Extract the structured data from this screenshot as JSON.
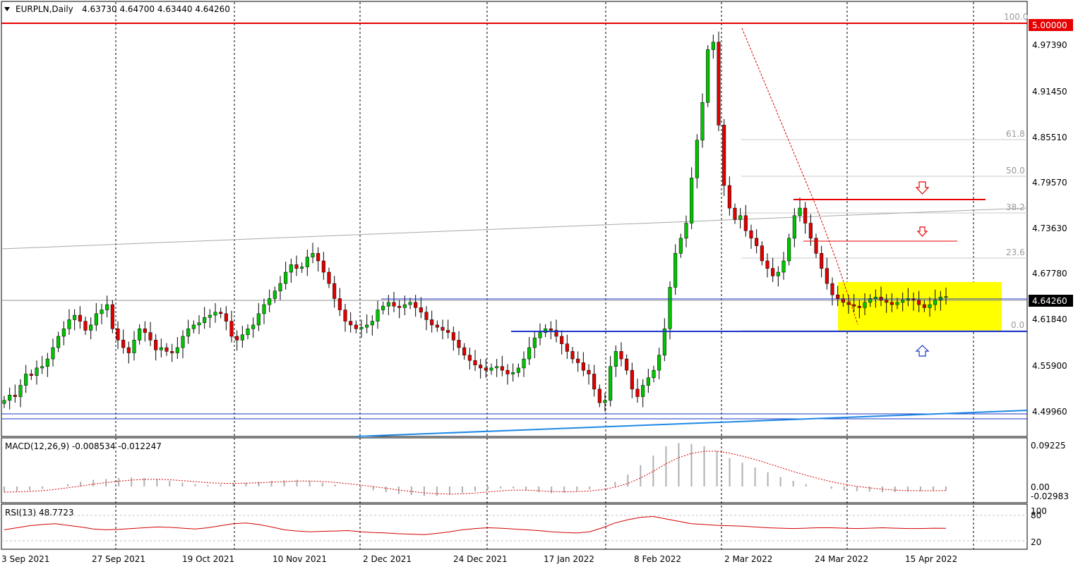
{
  "header": {
    "symbol": "EURPLN,Daily",
    "ohlc": "4.63730 4.64700 4.63440 4.64260"
  },
  "colors": {
    "bull": "#00c400",
    "bear": "#e00000",
    "wick": "#000000",
    "resistance": "#e60000",
    "support": "#1a34c8",
    "trend": "#1e88e5",
    "box": "#ffff00",
    "price_badge": "#e60000",
    "macd_signal": "#d40000",
    "rsi": "#d40000"
  },
  "price_labels": {
    "resistance": "5.00000",
    "current": "4.64260"
  },
  "price_axis": [
    "4.97390",
    "4.91450",
    "4.85510",
    "4.79570",
    "4.73630",
    "4.67780",
    "4.61840",
    "4.55900",
    "4.49960"
  ],
  "fib_labels": [
    "100.0",
    "61.8",
    "50.0",
    "38.2",
    "23.6",
    "0.0"
  ],
  "date_axis": [
    "3 Sep 2021",
    "27 Sep 2021",
    "19 Oct 2021",
    "10 Nov 2021",
    "2 Dec 2021",
    "24 Dec 2021",
    "17 Jan 2022",
    "8 Feb 2022",
    "2 Mar 2022",
    "24 Mar 2022",
    "15 Apr 2022"
  ],
  "macd": {
    "label": "MACD(12,26,9) -0.008534 -0.012247",
    "axis": [
      "0.09225",
      "0.00",
      "-0.02983"
    ]
  },
  "rsi": {
    "label": "RSI(13) 48.7723",
    "axis": [
      "100",
      "80",
      "20"
    ]
  },
  "chart_data": {
    "type": "candlestick",
    "ylim": [
      4.475,
      5.005
    ],
    "levels": {
      "resistance": 5.0,
      "current": 4.6426
    },
    "closes": [
      4.505,
      4.512,
      4.51,
      4.525,
      4.54,
      4.538,
      4.548,
      4.55,
      4.56,
      4.575,
      4.59,
      4.6,
      4.612,
      4.618,
      4.61,
      4.598,
      4.605,
      4.62,
      4.625,
      4.632,
      4.6,
      4.585,
      4.575,
      4.568,
      4.585,
      4.6,
      4.595,
      4.585,
      4.572,
      4.575,
      4.57,
      4.568,
      4.575,
      4.59,
      4.6,
      4.605,
      4.608,
      4.615,
      4.618,
      4.622,
      4.62,
      4.61,
      4.59,
      4.585,
      4.592,
      4.6,
      4.605,
      4.62,
      4.632,
      4.64,
      4.65,
      4.66,
      4.675,
      4.685,
      4.68,
      4.682,
      4.695,
      4.7,
      4.69,
      4.675,
      4.66,
      4.64,
      4.625,
      4.61,
      4.605,
      4.6,
      4.602,
      4.605,
      4.61,
      4.625,
      4.63,
      4.635,
      4.63,
      4.628,
      4.632,
      4.635,
      4.628,
      4.622,
      4.612,
      4.605,
      4.602,
      4.598,
      4.595,
      4.585,
      4.575,
      4.565,
      4.558,
      4.552,
      4.548,
      4.545,
      4.548,
      4.55,
      4.545,
      4.54,
      4.542,
      4.548,
      4.56,
      4.575,
      4.588,
      4.595,
      4.6,
      4.598,
      4.59,
      4.58,
      4.57,
      4.56,
      4.555,
      4.545,
      4.54,
      4.52,
      4.502,
      4.505,
      4.55,
      4.57,
      4.56,
      4.545,
      4.52,
      4.51,
      4.525,
      4.535,
      4.545,
      4.565,
      4.6,
      4.655,
      4.7,
      4.72,
      4.74,
      4.8,
      4.85,
      4.9,
      4.97,
      4.98,
      4.87,
      4.79,
      4.76,
      4.745,
      4.75,
      4.73,
      4.72,
      4.71,
      4.69,
      4.68,
      4.67,
      4.675,
      4.69,
      4.72,
      4.75,
      4.76,
      4.74,
      4.72,
      4.7,
      4.68,
      4.66,
      4.645,
      4.64,
      4.635,
      4.632,
      4.63,
      4.628,
      4.635,
      4.64,
      4.642,
      4.638,
      4.635,
      4.632,
      4.635,
      4.638,
      4.64,
      4.638,
      4.632,
      4.628,
      4.632,
      4.638,
      4.642,
      4.6426
    ],
    "macd": [
      -0.012,
      -0.01,
      -0.008,
      -0.005,
      0.0,
      0.005,
      0.01,
      0.014,
      0.016,
      0.018,
      0.019,
      0.018,
      0.016,
      0.012,
      0.008,
      0.005,
      0.003,
      0.004,
      0.006,
      0.008,
      0.01,
      0.012,
      0.013,
      0.014,
      0.012,
      0.008,
      0.004,
      0.0,
      -0.004,
      -0.008,
      -0.012,
      -0.016,
      -0.018,
      -0.02,
      -0.02,
      -0.018,
      -0.014,
      -0.01,
      -0.006,
      -0.004,
      -0.004,
      -0.008,
      -0.012,
      -0.014,
      -0.013,
      -0.01,
      -0.006,
      0.0,
      0.01,
      0.025,
      0.045,
      0.065,
      0.085,
      0.092,
      0.09,
      0.085,
      0.075,
      0.06,
      0.05,
      0.04,
      0.03,
      0.02,
      0.012,
      0.005,
      0.0,
      -0.005,
      -0.008,
      -0.01,
      -0.011,
      -0.012,
      -0.012,
      -0.011,
      -0.01,
      -0.009,
      -0.0085
    ],
    "rsi": [
      45,
      50,
      55,
      58,
      60,
      56,
      52,
      47,
      45,
      46,
      48,
      50,
      52,
      51,
      49,
      47,
      50,
      55,
      60,
      62,
      58,
      52,
      45,
      42,
      40,
      41,
      42,
      43,
      40,
      38,
      37,
      35,
      34,
      33,
      36,
      40,
      45,
      48,
      50,
      49,
      47,
      45,
      43,
      40,
      38,
      37,
      40,
      50,
      62,
      70,
      76,
      78,
      72,
      66,
      60,
      58,
      56,
      55,
      54,
      52,
      50,
      49,
      48,
      49,
      50,
      50,
      49,
      48,
      49,
      50,
      49,
      48,
      48,
      49,
      48.8
    ]
  }
}
